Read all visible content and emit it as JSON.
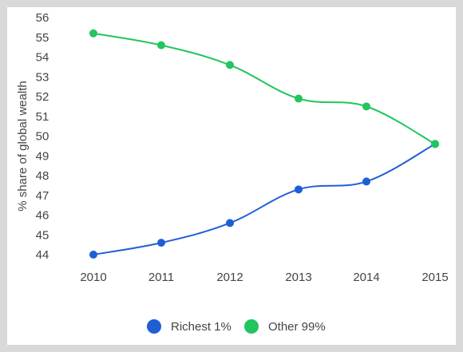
{
  "chart_data": {
    "type": "line",
    "title": "",
    "xlabel": "",
    "ylabel": "% share of global wealth",
    "categories": [
      "2010",
      "2011",
      "2012",
      "2013",
      "2014",
      "2015"
    ],
    "yticks": [
      44,
      45,
      46,
      47,
      48,
      49,
      50,
      51,
      52,
      53,
      54,
      55,
      56
    ],
    "ylim": [
      43.5,
      56.3
    ],
    "grid": false,
    "legend_position": "bottom",
    "series": [
      {
        "name": "Richest 1%",
        "color": "#1f5fd6",
        "values": [
          44.0,
          44.6,
          45.6,
          47.3,
          47.7,
          49.6
        ]
      },
      {
        "name": "Other 99%",
        "color": "#22c55e",
        "values": [
          55.2,
          54.6,
          53.6,
          51.9,
          51.5,
          49.6
        ]
      }
    ]
  }
}
